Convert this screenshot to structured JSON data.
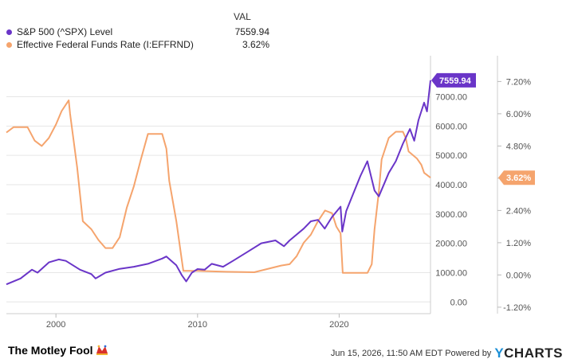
{
  "legend": {
    "header": "VAL",
    "items": [
      {
        "name": "S&P 500 (^SPX) Level",
        "value": "7559.94",
        "color": "#6a35c8"
      },
      {
        "name": "Effective Federal Funds Rate (I:EFFRND)",
        "value": "3.62%",
        "color": "#f5a46d"
      }
    ]
  },
  "footer": {
    "brand": "The Motley Fool",
    "timestamp": "Jun 15, 2026, 11:50 AM EDT  Powered by",
    "logo": "YCHARTS"
  },
  "chart_data": {
    "type": "line",
    "x_ticks": [
      "2000",
      "2010",
      "2020"
    ],
    "left_axis": {
      "ticks": [
        "0.00",
        "1000.00",
        "2000.00",
        "3000.00",
        "4000.00",
        "5000.00",
        "6000.00",
        "7000.00"
      ],
      "range": [
        -400,
        8400
      ]
    },
    "right_axis": {
      "ticks": [
        "-1.20%",
        "0.00%",
        "1.20%",
        "2.40%",
        "3.60%",
        "4.80%",
        "6.00%",
        "7.20%"
      ],
      "range": [
        -1.44,
        8.16
      ]
    },
    "grid": true,
    "series": [
      {
        "name": "S&P 500 (^SPX) Level",
        "axis": "left",
        "color": "#6a35c8",
        "end_label": "7559.94",
        "x": [
          1996.5,
          1997.5,
          1998.3,
          1998.7,
          1999.5,
          2000.2,
          2000.7,
          2001.7,
          2002.5,
          2002.8,
          2003.5,
          2004.5,
          2005.5,
          2006.5,
          2007.5,
          2007.8,
          2008.5,
          2008.9,
          2009.2,
          2009.6,
          2010.0,
          2010.5,
          2011.0,
          2011.8,
          2012.5,
          2013.5,
          2014.5,
          2015.5,
          2016.1,
          2016.5,
          2017.5,
          2018.0,
          2018.5,
          2018.98,
          2019.5,
          2020.1,
          2020.22,
          2020.5,
          2021.0,
          2021.5,
          2021.99,
          2022.5,
          2022.8,
          2023.5,
          2024.0,
          2024.5,
          2025.0,
          2025.3,
          2025.6,
          2026.0,
          2026.2,
          2026.45
        ],
        "values": [
          600,
          800,
          1100,
          1000,
          1350,
          1450,
          1400,
          1100,
          950,
          800,
          1000,
          1130,
          1200,
          1300,
          1480,
          1550,
          1250,
          900,
          700,
          1000,
          1120,
          1100,
          1300,
          1200,
          1400,
          1700,
          2000,
          2100,
          1900,
          2100,
          2500,
          2750,
          2800,
          2500,
          2900,
          3250,
          2400,
          3100,
          3700,
          4300,
          4800,
          3800,
          3600,
          4400,
          4800,
          5400,
          5900,
          5500,
          6200,
          6800,
          6500,
          7559.94
        ]
      },
      {
        "name": "Effective Federal Funds Rate (I:EFFRND)",
        "axis": "right",
        "color": "#f5a46d",
        "end_label": "3.62%",
        "x": [
          1996.5,
          1997.0,
          1998.0,
          1998.5,
          1999.0,
          1999.5,
          2000.0,
          2000.4,
          2000.9,
          2001.0,
          2001.5,
          2001.9,
          2002.5,
          2003.0,
          2003.5,
          2004.0,
          2004.5,
          2005.0,
          2005.5,
          2006.0,
          2006.5,
          2007.0,
          2007.5,
          2007.8,
          2008.0,
          2008.5,
          2008.9,
          2009.0,
          2010.0,
          2012.0,
          2014.0,
          2015.9,
          2016.5,
          2017.0,
          2017.5,
          2018.0,
          2018.5,
          2019.0,
          2019.5,
          2019.8,
          2020.1,
          2020.25,
          2021.0,
          2022.0,
          2022.3,
          2022.5,
          2022.8,
          2023.0,
          2023.5,
          2024.0,
          2024.5,
          2024.7,
          2024.9,
          2025.5,
          2025.8,
          2026.0,
          2026.45
        ],
        "values": [
          5.3,
          5.5,
          5.5,
          5.0,
          4.8,
          5.1,
          5.6,
          6.1,
          6.5,
          6.0,
          4.0,
          2.0,
          1.7,
          1.3,
          1.0,
          1.0,
          1.4,
          2.5,
          3.3,
          4.3,
          5.25,
          5.25,
          5.25,
          4.7,
          3.5,
          2.0,
          0.5,
          0.15,
          0.15,
          0.12,
          0.1,
          0.35,
          0.4,
          0.7,
          1.2,
          1.5,
          2.0,
          2.4,
          2.3,
          1.8,
          1.55,
          0.08,
          0.08,
          0.08,
          0.4,
          1.7,
          3.1,
          4.3,
          5.1,
          5.33,
          5.33,
          5.1,
          4.6,
          4.33,
          4.1,
          3.8,
          3.62
        ]
      }
    ]
  }
}
